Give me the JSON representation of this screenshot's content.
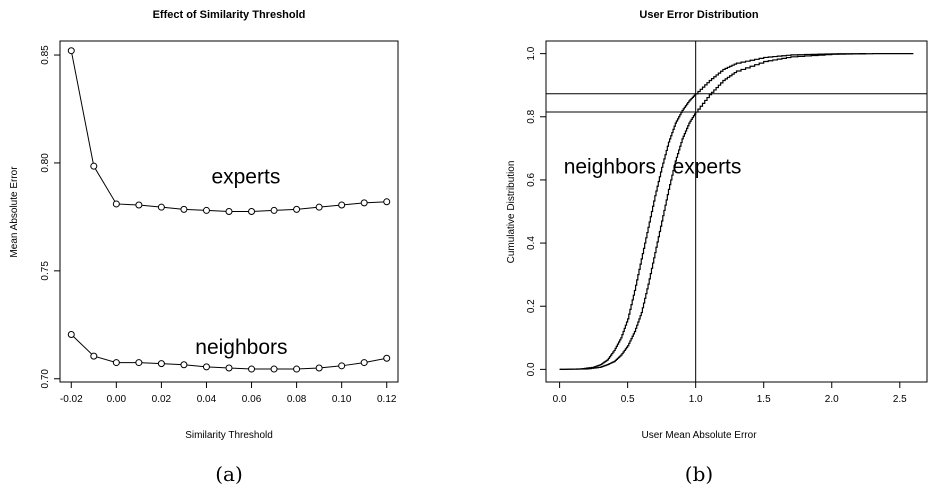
{
  "chart_data": [
    {
      "type": "line",
      "panel_label": "(a)",
      "title": "Effect of Similarity Threshold",
      "xlabel": "Similarity Threshold",
      "ylabel": "Mean Absolute Error",
      "xlim": [
        -0.025,
        0.125
      ],
      "ylim": [
        0.6985,
        0.8565
      ],
      "xticks": [
        -0.02,
        0.0,
        0.02,
        0.04,
        0.06,
        0.08,
        0.1,
        0.12
      ],
      "xtick_labels": [
        "-0.02",
        "0.00",
        "0.02",
        "0.04",
        "0.06",
        "0.08",
        "0.10",
        "0.12"
      ],
      "yticks": [
        0.7,
        0.75,
        0.8,
        0.85
      ],
      "ytick_labels": [
        "0.70",
        "0.75",
        "0.80",
        "0.85"
      ],
      "grid": false,
      "x": [
        -0.02,
        -0.01,
        0.0,
        0.01,
        0.02,
        0.03,
        0.04,
        0.05,
        0.06,
        0.07,
        0.08,
        0.09,
        0.1,
        0.11,
        0.12
      ],
      "series": [
        {
          "name": "experts",
          "values": [
            0.852,
            0.7985,
            0.781,
            0.7805,
            0.7795,
            0.7785,
            0.778,
            0.7775,
            0.7775,
            0.778,
            0.7785,
            0.7795,
            0.7805,
            0.7815,
            0.782
          ],
          "label_at": [
            0.0575,
            0.7905
          ]
        },
        {
          "name": "neighbors",
          "values": [
            0.7205,
            0.7105,
            0.7075,
            0.7075,
            0.707,
            0.7065,
            0.7055,
            0.705,
            0.7045,
            0.7045,
            0.7045,
            0.705,
            0.706,
            0.7075,
            0.7095
          ],
          "label_at": [
            0.0555,
            0.7115
          ]
        }
      ]
    },
    {
      "type": "line",
      "panel_label": "(b)",
      "title": "User Error Distribution",
      "xlabel": "User Mean Absolute Error",
      "ylabel": "Cumulative Distribution",
      "xlim": [
        -0.1,
        2.7
      ],
      "ylim": [
        -0.04,
        1.04
      ],
      "xticks": [
        0.0,
        0.5,
        1.0,
        1.5,
        2.0,
        2.5
      ],
      "xtick_labels": [
        "0.0",
        "0.5",
        "1.0",
        "1.5",
        "2.0",
        "2.5"
      ],
      "yticks": [
        0.0,
        0.2,
        0.4,
        0.6,
        0.8,
        1.0
      ],
      "ytick_labels": [
        "0.0",
        "0.2",
        "0.4",
        "0.6",
        "0.8",
        "1.0"
      ],
      "grid": false,
      "reference_lines": {
        "vertical_x": 1.0,
        "horizontal_y": [
          0.815,
          0.873
        ]
      },
      "series": [
        {
          "name": "neighbors",
          "points": [
            [
              0.0,
              0.0
            ],
            [
              0.15,
              0.0015
            ],
            [
              0.25,
              0.007
            ],
            [
              0.3,
              0.015
            ],
            [
              0.35,
              0.03
            ],
            [
              0.4,
              0.06
            ],
            [
              0.45,
              0.1
            ],
            [
              0.5,
              0.16
            ],
            [
              0.55,
              0.25
            ],
            [
              0.6,
              0.35
            ],
            [
              0.65,
              0.45
            ],
            [
              0.7,
              0.55
            ],
            [
              0.75,
              0.64
            ],
            [
              0.8,
              0.72
            ],
            [
              0.85,
              0.78
            ],
            [
              0.9,
              0.82
            ],
            [
              0.95,
              0.85
            ],
            [
              1.0,
              0.873
            ],
            [
              1.1,
              0.915
            ],
            [
              1.2,
              0.95
            ],
            [
              1.3,
              0.97
            ],
            [
              1.5,
              0.988
            ],
            [
              1.7,
              0.996
            ],
            [
              2.0,
              0.9995
            ],
            [
              2.25,
              1.0
            ]
          ],
          "label_at": [
            0.03,
            0.62
          ]
        },
        {
          "name": "experts",
          "points": [
            [
              0.0,
              0.0
            ],
            [
              0.2,
              0.0015
            ],
            [
              0.3,
              0.007
            ],
            [
              0.35,
              0.015
            ],
            [
              0.4,
              0.025
            ],
            [
              0.45,
              0.045
            ],
            [
              0.5,
              0.075
            ],
            [
              0.55,
              0.12
            ],
            [
              0.6,
              0.18
            ],
            [
              0.65,
              0.27
            ],
            [
              0.7,
              0.37
            ],
            [
              0.75,
              0.47
            ],
            [
              0.8,
              0.57
            ],
            [
              0.85,
              0.66
            ],
            [
              0.9,
              0.73
            ],
            [
              0.95,
              0.78
            ],
            [
              1.0,
              0.815
            ],
            [
              1.1,
              0.87
            ],
            [
              1.2,
              0.915
            ],
            [
              1.3,
              0.945
            ],
            [
              1.5,
              0.975
            ],
            [
              1.7,
              0.99
            ],
            [
              2.0,
              0.998
            ],
            [
              2.3,
              1.0
            ],
            [
              2.6,
              1.0
            ]
          ],
          "label_at": [
            0.83,
            0.62
          ]
        }
      ]
    }
  ]
}
